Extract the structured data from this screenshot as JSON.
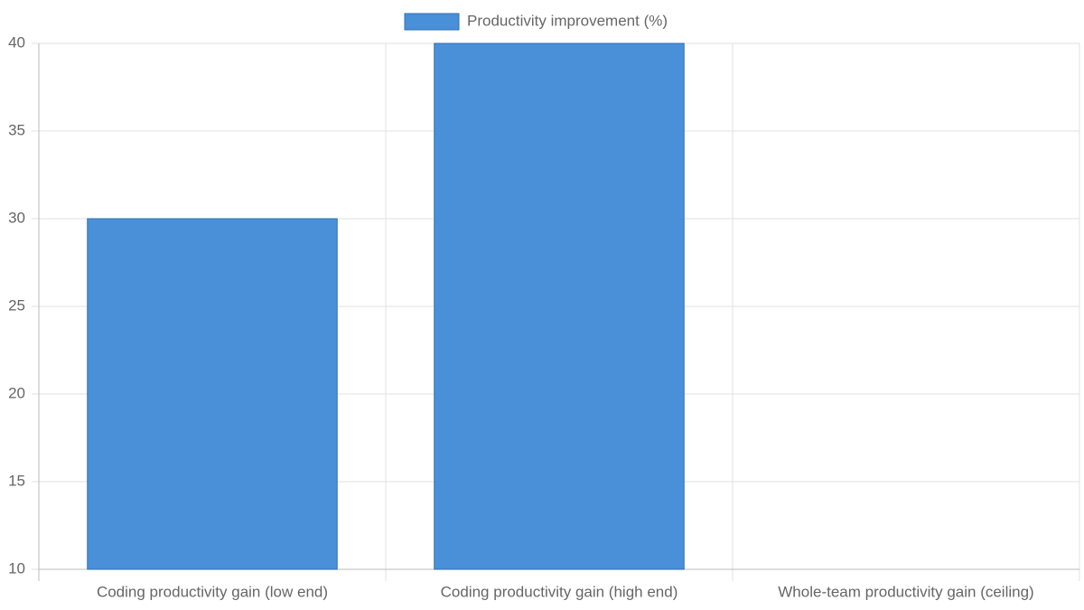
{
  "chart_data": {
    "type": "bar",
    "categories": [
      "Coding productivity gain (low end)",
      "Coding productivity gain (high end)",
      "Whole-team productivity gain (ceiling)"
    ],
    "series": [
      {
        "name": "Productivity improvement (%)",
        "color": "#4a90d9",
        "values": [
          30,
          40,
          10
        ]
      }
    ],
    "ylim": [
      10,
      40
    ],
    "yticks": [
      10,
      15,
      20,
      25,
      30,
      35,
      40
    ],
    "grid": true,
    "legend": "top"
  }
}
